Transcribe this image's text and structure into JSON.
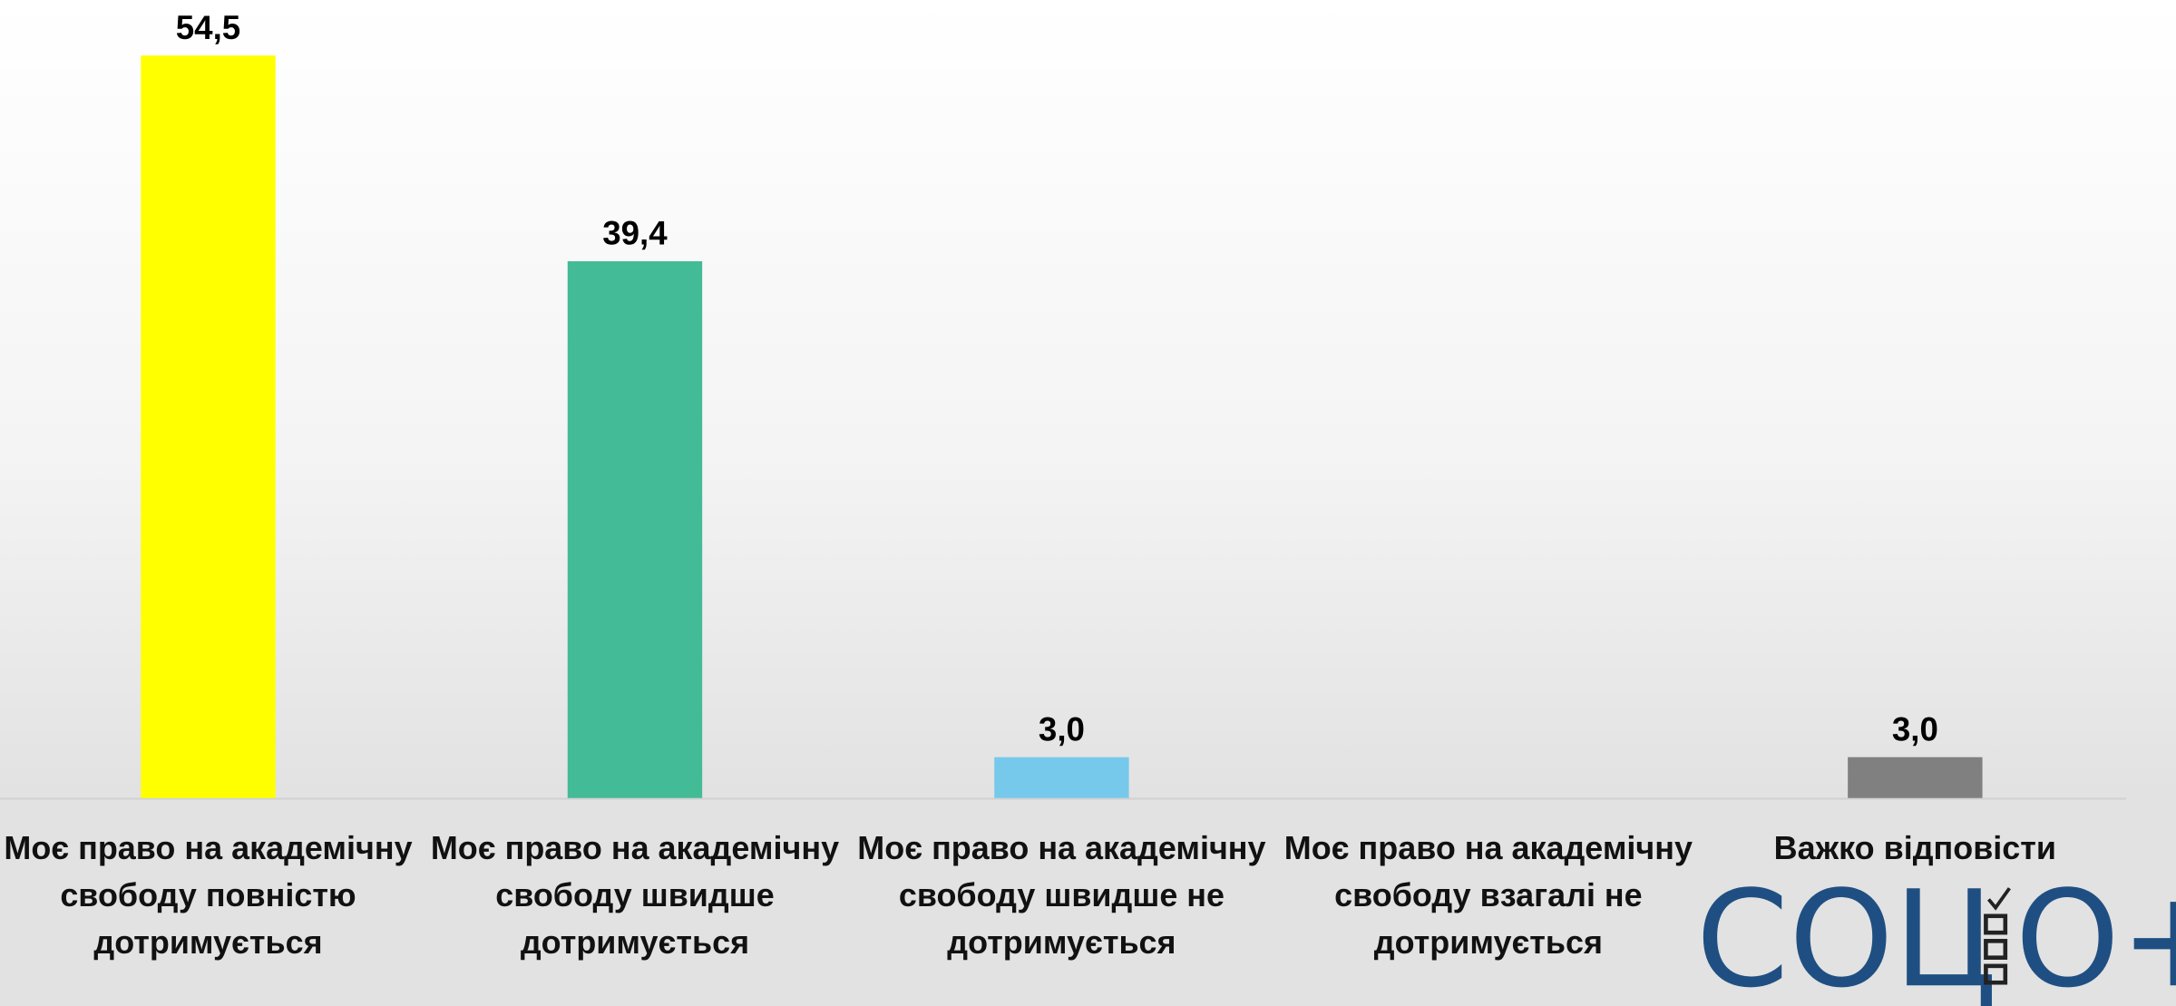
{
  "chart_data": {
    "type": "bar",
    "categories": [
      "Моє право на академічну свободу повністю дотримується",
      "Моє право на академічну свободу швидше дотримується",
      "Моє право на академічну свободу швидше не дотримується",
      "Моє право на академічну свободу взагалі не дотримується",
      "Важко відповісти"
    ],
    "values": [
      54.5,
      39.4,
      3.0,
      null,
      3.0
    ],
    "value_labels": [
      "54,5",
      "39,4",
      "3,0",
      null,
      "3,0"
    ],
    "colors": [
      "#ffff00",
      "#43bb96",
      "#77c9ec",
      null,
      "#808080"
    ],
    "logo": {
      "left": "СОЦ",
      "right": "О+"
    }
  }
}
